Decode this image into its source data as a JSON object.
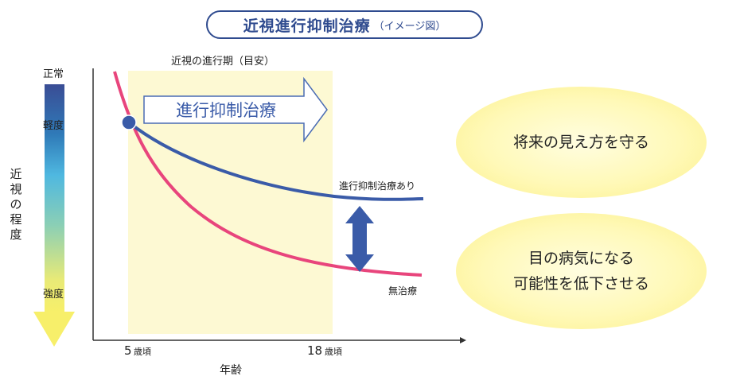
{
  "title": {
    "main": "近視進行抑制治療",
    "sub": "（イメージ図）"
  },
  "period_label": "近視の進行期（目安）",
  "treatment_arrow_label": "進行抑制治療",
  "y_axis": {
    "title": "近視の程度",
    "top": "正常",
    "light": "軽度",
    "strong": "強度"
  },
  "x_axis": {
    "title": "年齢",
    "tick_5": "5",
    "tick_18": "18",
    "tick_unit": "歳頃"
  },
  "curves": {
    "treated_label": "進行抑制治療あり",
    "untreated_label": "無治療"
  },
  "colors": {
    "treated": "#3a5ba8",
    "untreated": "#e8457c",
    "period_bg": "#fdf9d3",
    "difference_arrow": "#3a5ba8"
  },
  "benefits": [
    {
      "text": "将来の見え方を守る"
    },
    {
      "text": "目の病気になる\n可能性を低下させる"
    }
  ]
}
